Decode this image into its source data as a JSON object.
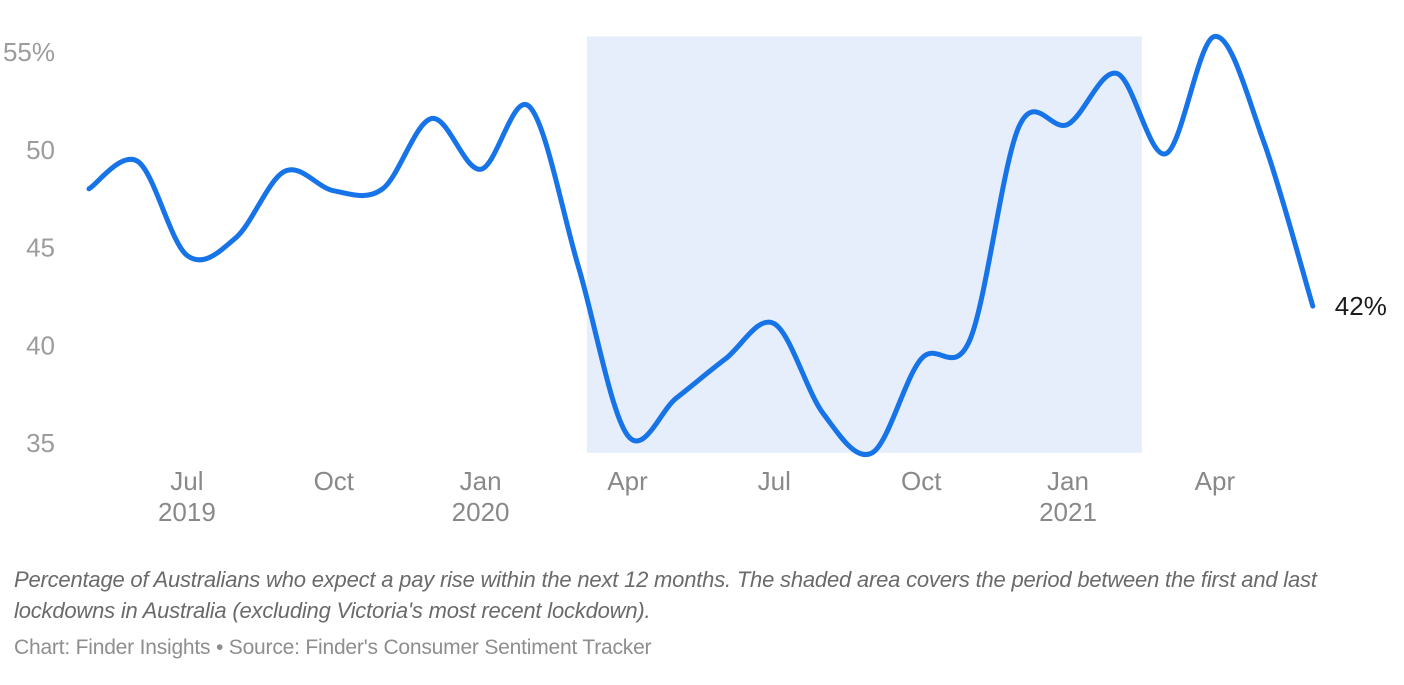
{
  "chart_data": {
    "type": "line",
    "title": "",
    "xlabel": "",
    "ylabel": "",
    "grid": "off",
    "legend": "none",
    "ylim": [
      33,
      57
    ],
    "x": [
      "May 2019",
      "Jun 2019",
      "Jul 2019",
      "Aug 2019",
      "Sep 2019",
      "Oct 2019",
      "Nov 2019",
      "Dec 2019",
      "Jan 2020",
      "Feb 2020",
      "Mar 2020",
      "Apr 2020",
      "May 2020",
      "Jun 2020",
      "Jul 2020",
      "Aug 2020",
      "Sep 2020",
      "Oct 2020",
      "Nov 2020",
      "Dec 2020",
      "Jan 2021",
      "Feb 2021",
      "Mar 2021",
      "Apr 2021",
      "May 2021",
      "Jun 2021"
    ],
    "series": [
      {
        "name": "Percentage of Australians who expect a pay rise within the next 12 months",
        "values": [
          48.0,
          49.4,
          44.6,
          45.5,
          48.9,
          47.9,
          48.0,
          51.6,
          49.0,
          52.2,
          44.0,
          35.4,
          37.3,
          39.3,
          41.1,
          36.5,
          34.5,
          39.3,
          40.3,
          51.2,
          51.3,
          53.9,
          49.8,
          55.8,
          50.4,
          42.0
        ]
      }
    ],
    "yticks": [
      {
        "value": 35,
        "label": "35"
      },
      {
        "value": 40,
        "label": "40"
      },
      {
        "value": 45,
        "label": "45"
      },
      {
        "value": 50,
        "label": "50"
      },
      {
        "value": 55,
        "label": "55%"
      }
    ],
    "xticks": [
      {
        "label": "Jul",
        "year": "2019",
        "index": 2
      },
      {
        "label": "Oct",
        "index": 5
      },
      {
        "label": "Jan",
        "year": "2020",
        "index": 8
      },
      {
        "label": "Apr",
        "index": 11
      },
      {
        "label": "Jul",
        "index": 14
      },
      {
        "label": "Oct",
        "index": 17
      },
      {
        "label": "Jan",
        "year": "2021",
        "index": 20
      },
      {
        "label": "Apr",
        "index": 23
      }
    ],
    "end_label": "42%",
    "line_color": "#1773e8",
    "shaded_region": {
      "start_index": 10.17,
      "end_index": 21.51,
      "y_top_value": 55.8,
      "y_bottom_value": 34.5,
      "color": "#e5eefa",
      "meaning": "period between the first and last lockdowns in Australia"
    }
  },
  "footer": {
    "caption": "Percentage of Australians who expect a pay rise within the next 12 months. The shaded area covers the period between the first and last lockdowns in Australia (excluding Victoria's most recent lockdown).",
    "attribution": "Chart: Finder Insights • Source: Finder's Consumer Sentiment Tracker"
  }
}
